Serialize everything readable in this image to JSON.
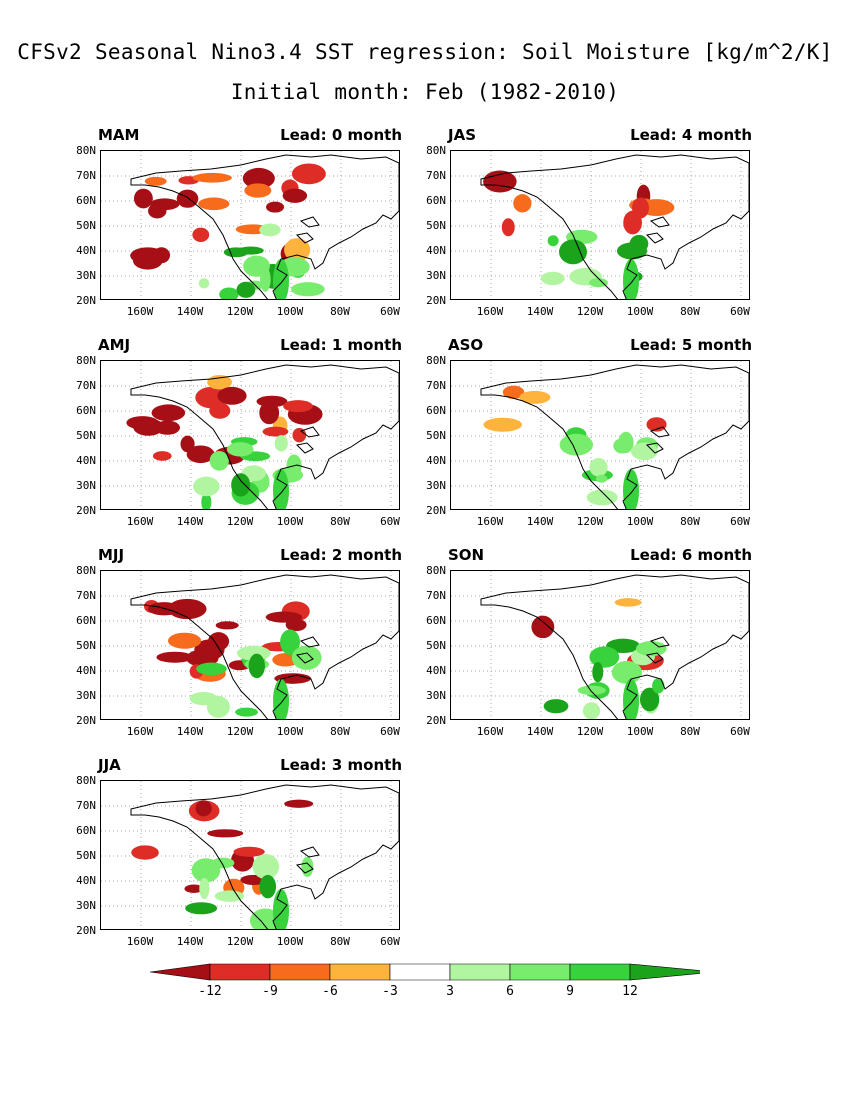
{
  "title": "CFSv2 Seasonal Nino3.4 SST regression: Soil Moisture [kg/m^2/K]",
  "subtitle": "Initial month: Feb (1982-2010)",
  "axes": {
    "lat_labels": [
      "80N",
      "70N",
      "60N",
      "50N",
      "40N",
      "30N",
      "20N"
    ],
    "lon_labels": [
      "160W",
      "140W",
      "120W",
      "100W",
      "80W",
      "60W"
    ]
  },
  "panels": [
    {
      "season": "MAM",
      "lead": "Lead: 0 month",
      "pattern": {
        "dry": 0.95,
        "wet": 0.7
      }
    },
    {
      "season": "AMJ",
      "lead": "Lead: 1 month",
      "pattern": {
        "dry": 0.9,
        "wet": 0.7
      }
    },
    {
      "season": "MJJ",
      "lead": "Lead: 2 month",
      "pattern": {
        "dry": 0.8,
        "wet": 0.55
      }
    },
    {
      "season": "JJA",
      "lead": "Lead: 3 month",
      "pattern": {
        "dry": 0.55,
        "wet": 0.5
      }
    },
    {
      "season": "JAS",
      "lead": "Lead: 4 month",
      "pattern": {
        "dry": 0.35,
        "wet": 0.5
      }
    },
    {
      "season": "ASO",
      "lead": "Lead: 5 month",
      "pattern": {
        "dry": 0.2,
        "wet": 0.55
      }
    },
    {
      "season": "SON",
      "lead": "Lead: 6 month",
      "pattern": {
        "dry": 0.12,
        "wet": 0.7
      }
    }
  ],
  "colorbar": {
    "labels": [
      "-12",
      "-9",
      "-6",
      "-3",
      "3",
      "6",
      "9",
      "12"
    ],
    "colors": [
      "#a50f15",
      "#de2d26",
      "#f76b1c",
      "#fdb33c",
      "#ffffff",
      "#b2f5a0",
      "#78ec6c",
      "#37d23c",
      "#1ca31c"
    ]
  }
}
